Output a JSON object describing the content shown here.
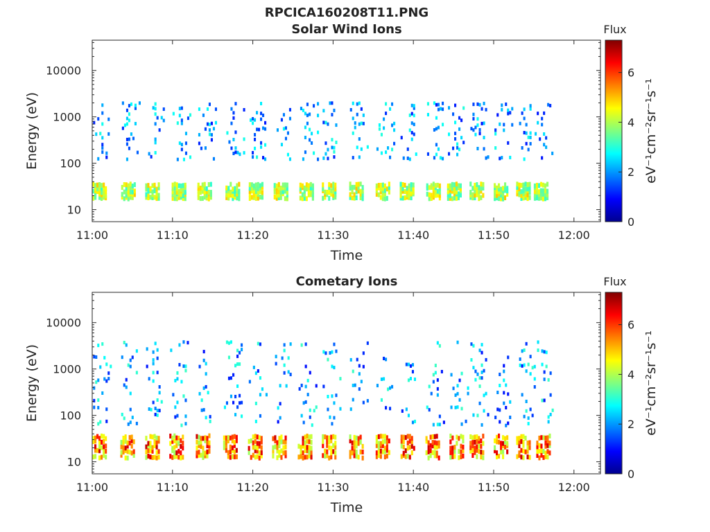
{
  "figure_title": "RPCICA160208T11.PNG",
  "colorbar": {
    "label": "Flux",
    "unit_label": "eV⁻¹cm⁻²sr⁻¹s⁻¹",
    "range": [
      0,
      7.3
    ],
    "ticks": [
      "0",
      "2",
      "4",
      "6"
    ],
    "tick_values": [
      0,
      2,
      4,
      6
    ],
    "colormap": "jet"
  },
  "chart_data": [
    {
      "type": "heatmap",
      "title": "Solar Wind Ions",
      "xlabel": "Time",
      "ylabel": "Energy (eV)",
      "x_ticks": [
        "11:00",
        "11:10",
        "11:20",
        "11:30",
        "11:40",
        "11:50",
        "12:00"
      ],
      "x_tick_minutes": [
        0,
        10,
        20,
        30,
        40,
        50,
        60
      ],
      "xlim_minutes": [
        0,
        63.3
      ],
      "y_scale": "log",
      "y_ticks": [
        "10",
        "100",
        "1000",
        "10000"
      ],
      "y_tick_values": [
        10,
        100,
        1000,
        10000
      ],
      "ylim": [
        5.5,
        45000
      ],
      "grid": false,
      "cycle_starts_minutes": [
        0.0,
        3.6,
        6.6,
        9.9,
        13.1,
        16.6,
        19.5,
        22.6,
        25.8,
        28.6,
        32.0,
        35.3,
        38.3,
        41.6,
        44.2,
        47.0,
        50.0,
        52.8,
        55.0
      ],
      "bands": [
        {
          "name": "low-energy",
          "energy_range": [
            17,
            38
          ],
          "flux_level": [
            3.0,
            5.0
          ]
        },
        {
          "name": "high-energy",
          "energy_range": [
            120,
            2200
          ],
          "flux_level": [
            1.0,
            3.0
          ]
        }
      ]
    },
    {
      "type": "heatmap",
      "title": "Cometary Ions",
      "xlabel": "Time",
      "ylabel": "Energy (eV)",
      "x_ticks": [
        "11:00",
        "11:10",
        "11:20",
        "11:30",
        "11:40",
        "11:50",
        "12:00"
      ],
      "x_tick_minutes": [
        0,
        10,
        20,
        30,
        40,
        50,
        60
      ],
      "xlim_minutes": [
        0,
        63.3
      ],
      "y_scale": "log",
      "y_ticks": [
        "10",
        "100",
        "1000",
        "10000"
      ],
      "y_tick_values": [
        10,
        100,
        1000,
        10000
      ],
      "ylim": [
        5.5,
        45000
      ],
      "grid": false,
      "cycle_starts_minutes": [
        0.0,
        3.5,
        6.6,
        9.6,
        12.9,
        16.3,
        19.4,
        22.4,
        25.6,
        28.6,
        32.0,
        35.3,
        38.4,
        41.5,
        44.5,
        47.0,
        50.0,
        52.8,
        55.3
      ],
      "bands": [
        {
          "name": "low-energy",
          "energy_range": [
            12,
            40
          ],
          "flux_level": [
            3.8,
            6.8
          ]
        },
        {
          "name": "high-energy",
          "energy_range": [
            60,
            4500
          ],
          "flux_level": [
            1.0,
            3.2
          ]
        }
      ]
    }
  ]
}
